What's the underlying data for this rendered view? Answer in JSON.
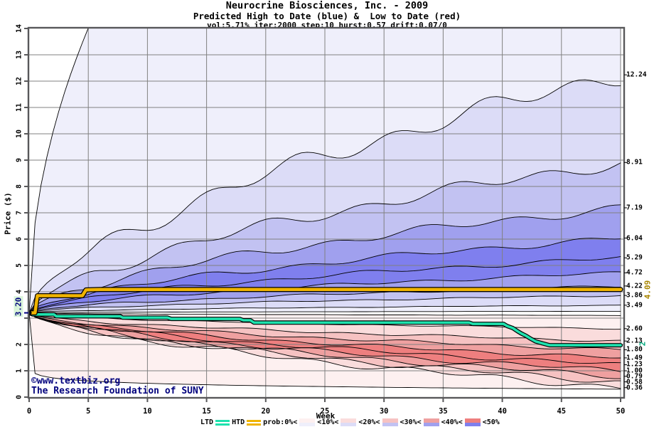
{
  "header": {
    "title": "Neurocrine Biosciences, Inc. - 2009",
    "subtitle": "Predicted High to Date (blue) &  Low to Date (red)",
    "params": "vol:5.71% iter:2000 step:10 hurst:0.57 drift:0.07/0"
  },
  "footer": {
    "copyright_line1": "©www.textbiz.org",
    "copyright_line2": "The Research Foundation of SUNY"
  },
  "chart_data": {
    "type": "fan",
    "title": "Neurocrine Biosciences, Inc. - 2009",
    "subtitle": "Predicted High to Date (blue) &  Low to Date (red)",
    "annotation": "vol:5.71% iter:2000 step:10 hurst:0.57 drift:0.07/0",
    "xlabel": "Week",
    "ylabel": "Price ($)",
    "xlim": [
      0,
      50
    ],
    "ylim": [
      0,
      14
    ],
    "x_ticks": [
      0,
      5,
      10,
      15,
      20,
      25,
      30,
      35,
      40,
      45,
      50
    ],
    "y_ticks": [
      0,
      1,
      2,
      4,
      5,
      6,
      7,
      8,
      9,
      10,
      11,
      12,
      13,
      14
    ],
    "grid": true,
    "start_price": 3.2,
    "start_price_label": "3.20",
    "high_fan": {
      "description": "predicted High-to-Date decile boundaries, week-50 end values",
      "max_curve": {
        "end_value": 37.4,
        "power": 0.5,
        "exits_top_at_week": 5
      },
      "decile_ends": [
        12.24,
        8.91,
        7.19,
        6.04,
        5.29,
        4.72,
        4.22,
        3.86,
        3.49
      ],
      "decile_powers": [
        0.6,
        0.6,
        0.59,
        0.58,
        0.57,
        0.56,
        0.55,
        0.53,
        0.51
      ],
      "inner_end": 3.26
    },
    "low_fan": {
      "description": "predicted Low-to-Date decile boundaries, week-50 end values",
      "inner_end": 3.1,
      "decile_ends": [
        2.6,
        2.13,
        1.8,
        1.49,
        1.23,
        1.0,
        0.79,
        0.58,
        0.36
      ],
      "decile_powers": [
        0.52,
        0.54,
        0.55,
        0.56,
        0.57,
        0.58,
        0.59,
        0.6,
        0.61
      ],
      "min_curve": {
        "end_value": 0.3,
        "power": 0.05
      }
    },
    "right_labels_high": [
      "12.24",
      "8.91",
      "7.19",
      "6.04",
      "5.29",
      "4.72",
      "4.22",
      "3.86",
      "3.49"
    ],
    "right_labels_low": [
      "2.60",
      "2.13",
      "1.80",
      "1.49",
      "1.23",
      "1.00",
      "0.79",
      "0.58",
      "0.36"
    ],
    "htd": {
      "name": "HTD",
      "final_value": 4.09,
      "final_label": "4.09",
      "points": [
        [
          0,
          3.2
        ],
        [
          0.5,
          3.2
        ],
        [
          0.7,
          3.85
        ],
        [
          4.5,
          3.85
        ],
        [
          4.8,
          4.07
        ],
        [
          6,
          4.09
        ],
        [
          50,
          4.09
        ]
      ]
    },
    "ltd": {
      "name": "LTD",
      "final_value": 1.97,
      "final_label": "2",
      "points": [
        [
          0,
          3.2
        ],
        [
          0.3,
          3.14
        ],
        [
          2.1,
          3.14
        ],
        [
          2.3,
          3.07
        ],
        [
          7.7,
          3.07
        ],
        [
          7.9,
          3.02
        ],
        [
          11.7,
          3.02
        ],
        [
          12,
          2.97
        ],
        [
          17.8,
          2.97
        ],
        [
          18.1,
          2.92
        ],
        [
          18.7,
          2.92
        ],
        [
          19,
          2.83
        ],
        [
          37.2,
          2.83
        ],
        [
          37.5,
          2.78
        ],
        [
          40.1,
          2.78
        ],
        [
          40.4,
          2.7
        ],
        [
          40.9,
          2.62
        ],
        [
          41.3,
          2.5
        ],
        [
          41.6,
          2.42
        ],
        [
          42,
          2.33
        ],
        [
          42.4,
          2.22
        ],
        [
          42.8,
          2.12
        ],
        [
          43.4,
          2.04
        ],
        [
          44,
          1.97
        ],
        [
          50,
          1.97
        ]
      ]
    },
    "colors": {
      "blue_levels": [
        "#efeffb",
        "#dcdcf7",
        "#c2c2f2",
        "#a0a0ee",
        "#7f7fee"
      ],
      "red_levels": [
        "#fdf0f0",
        "#fadcdc",
        "#f6c2c2",
        "#efa0a0",
        "#ee7f7f"
      ],
      "band_level_order": [
        0,
        1,
        2,
        3,
        4,
        4,
        3,
        2,
        1,
        0
      ],
      "htd_line": "#f0b400",
      "ltd_line": "#1fe2ae",
      "htd_label": "#a88500",
      "ltd_label": "#00a87c",
      "grid": "#808080",
      "frame": "#58585a",
      "curve_stroke": "#000000",
      "copyright": "#00007d",
      "start_price_bg": "#d9f4d9",
      "start_price_fg": "#00007d"
    },
    "legend": {
      "items": [
        {
          "kind": "text",
          "label": "LTD"
        },
        {
          "kind": "line",
          "name": "ltd-line-swatch",
          "color": "#1fe2ae"
        },
        {
          "kind": "text",
          "label": "HTD"
        },
        {
          "kind": "line",
          "name": "htd-line-swatch",
          "color": "#f0b400"
        },
        {
          "kind": "text",
          "label": "prob:0%<"
        },
        {
          "kind": "swatch",
          "level": 0
        },
        {
          "kind": "text",
          "label": "<10%<"
        },
        {
          "kind": "swatch",
          "level": 1
        },
        {
          "kind": "text",
          "label": "<20%<"
        },
        {
          "kind": "swatch",
          "level": 2
        },
        {
          "kind": "text",
          "label": "<30%<"
        },
        {
          "kind": "swatch",
          "level": 3
        },
        {
          "kind": "text",
          "label": "<40%<"
        },
        {
          "kind": "swatch",
          "level": 4
        },
        {
          "kind": "text",
          "label": "<50%"
        }
      ]
    }
  }
}
